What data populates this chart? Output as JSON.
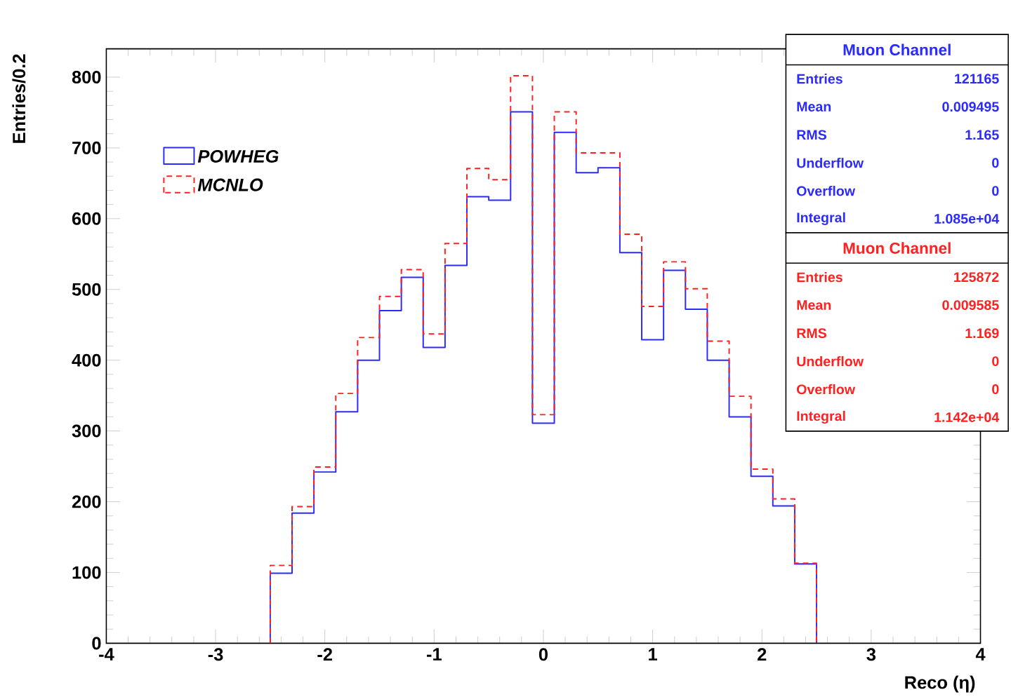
{
  "chart_data": {
    "type": "histogram",
    "xlabel": "Reco (η)",
    "ylabel": "Entries/0.2",
    "bins": [
      -2.5,
      -2.3,
      -2.1,
      -1.9,
      -1.7,
      -1.5,
      -1.3,
      -1.1,
      -0.9,
      -0.7,
      -0.5,
      -0.3,
      -0.1,
      0.1,
      0.3,
      0.5,
      0.7,
      0.9,
      1.1,
      1.3,
      1.5,
      1.7,
      1.9,
      2.1,
      2.3,
      2.5
    ],
    "series": [
      {
        "name": "POWHEG",
        "color": "#2b2bff",
        "line_style": "solid",
        "values": [
          99,
          184,
          242,
          327,
          400,
          470,
          517,
          418,
          534,
          631,
          626,
          751,
          311,
          722,
          665,
          672,
          552,
          429,
          527,
          472,
          400,
          320,
          236,
          194,
          112
        ]
      },
      {
        "name": "MCNLO",
        "color": "#ff2020",
        "line_style": "dashed",
        "values": [
          110,
          193,
          249,
          353,
          432,
          490,
          528,
          437,
          565,
          671,
          655,
          802,
          323,
          751,
          693,
          693,
          578,
          476,
          539,
          501,
          427,
          349,
          246,
          204,
          113
        ]
      }
    ],
    "xlim": [
      -4,
      4
    ],
    "ylim": [
      0,
      840
    ],
    "xticks": [
      -4,
      -3,
      -2,
      -1,
      0,
      1,
      2,
      3,
      4
    ],
    "yticks": [
      0,
      100,
      200,
      300,
      400,
      500,
      600,
      700,
      800
    ],
    "legend": "top left",
    "annotations": [
      "Muon Channel",
      "Entries",
      "121165",
      "Mean",
      "0.009495",
      "RMS",
      "1.165",
      "Underflow",
      "0",
      "Overflow",
      "0",
      "Integral",
      "1.085e+04",
      "Muon Channel",
      "Entries",
      "125872",
      "Mean",
      "0.009585",
      "RMS",
      "1.169",
      "Underflow",
      "0",
      "Overflow",
      "0",
      "Integral",
      "1.142e+04"
    ]
  }
}
